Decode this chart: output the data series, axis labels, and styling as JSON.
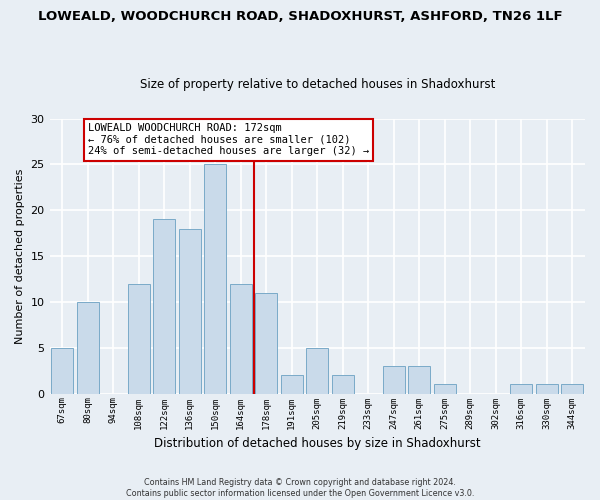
{
  "title": "LOWEALD, WOODCHURCH ROAD, SHADOXHURST, ASHFORD, TN26 1LF",
  "subtitle": "Size of property relative to detached houses in Shadoxhurst",
  "xlabel": "Distribution of detached houses by size in Shadoxhurst",
  "ylabel": "Number of detached properties",
  "bar_labels": [
    "67sqm",
    "80sqm",
    "94sqm",
    "108sqm",
    "122sqm",
    "136sqm",
    "150sqm",
    "164sqm",
    "178sqm",
    "191sqm",
    "205sqm",
    "219sqm",
    "233sqm",
    "247sqm",
    "261sqm",
    "275sqm",
    "289sqm",
    "302sqm",
    "316sqm",
    "330sqm",
    "344sqm"
  ],
  "bar_values": [
    5,
    10,
    0,
    12,
    19,
    18,
    25,
    12,
    11,
    2,
    5,
    2,
    0,
    3,
    3,
    1,
    0,
    0,
    1,
    1,
    1
  ],
  "bar_color": "#c9daea",
  "bar_edge_color": "#7aaac8",
  "ylim": [
    0,
    30
  ],
  "yticks": [
    0,
    5,
    10,
    15,
    20,
    25,
    30
  ],
  "reference_line_color": "#cc0000",
  "annotation_title": "LOWEALD WOODCHURCH ROAD: 172sqm",
  "annotation_line1": "← 76% of detached houses are smaller (102)",
  "annotation_line2": "24% of semi-detached houses are larger (32) →",
  "annotation_box_color": "#ffffff",
  "annotation_box_edge_color": "#cc0000",
  "footer_line1": "Contains HM Land Registry data © Crown copyright and database right 2024.",
  "footer_line2": "Contains public sector information licensed under the Open Government Licence v3.0.",
  "background_color": "#e8eef4",
  "grid_color": "#ffffff"
}
